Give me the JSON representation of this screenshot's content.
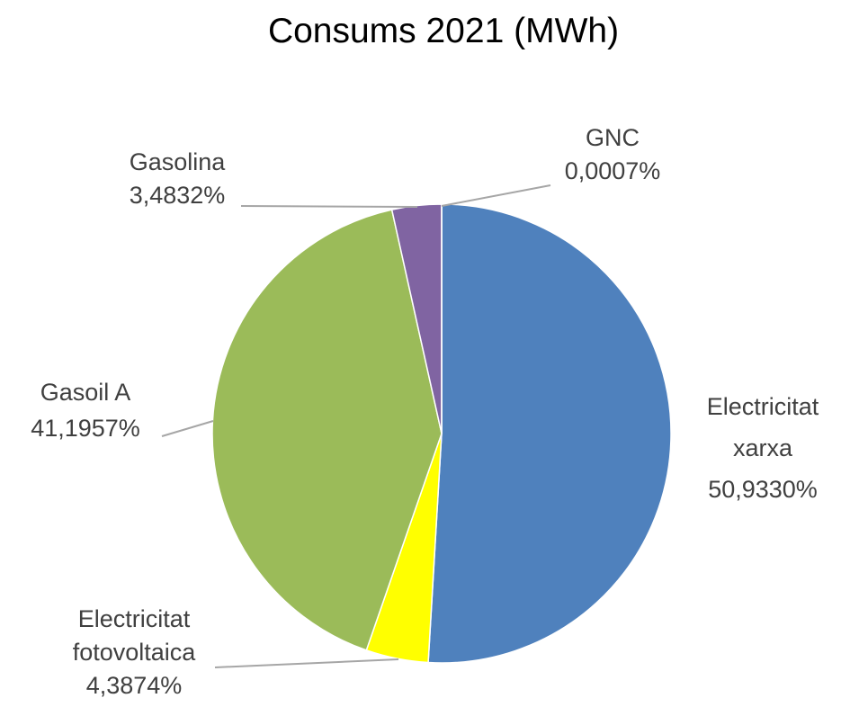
{
  "chart_data": {
    "type": "pie",
    "title": "Consums 2021 (MWh)",
    "start_angle_deg": 0,
    "direction": "clockwise",
    "legend": "none",
    "slices": [
      {
        "key": "electricitat-xarxa",
        "label_lines": [
          "Electricitat",
          "xarxa"
        ],
        "value": 50.933,
        "percent_text": "50,9330%",
        "color": "#4f81bd"
      },
      {
        "key": "electricitat-fotovoltaica",
        "label_lines": [
          "Electricitat",
          "fotovoltaica"
        ],
        "value": 4.3874,
        "percent_text": "4,3874%",
        "color": "#ffff00"
      },
      {
        "key": "gasoil-a",
        "label_lines": [
          "Gasoil A"
        ],
        "value": 41.1957,
        "percent_text": "41,1957%",
        "color": "#9bbb59"
      },
      {
        "key": "gasolina",
        "label_lines": [
          "Gasolina"
        ],
        "value": 3.4832,
        "percent_text": "3,4832%",
        "color": "#8064a2"
      },
      {
        "key": "gnc",
        "label_lines": [
          "GNC"
        ],
        "value": 0.0007,
        "percent_text": "0,0007%",
        "color": "#f79646"
      }
    ]
  }
}
